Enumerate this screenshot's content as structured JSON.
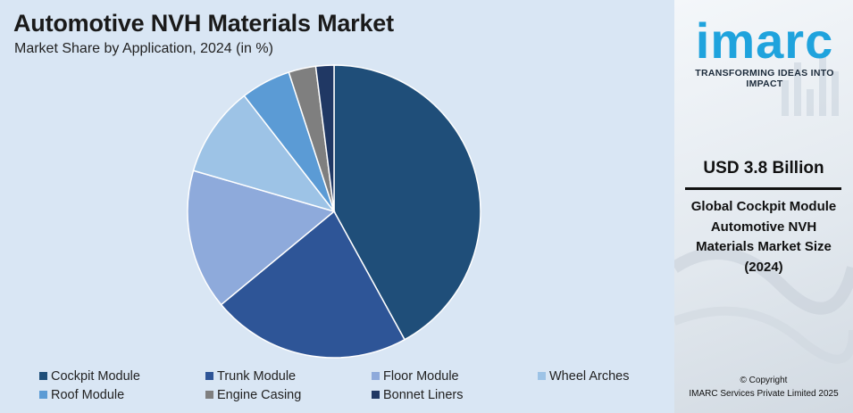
{
  "header": {
    "title": "Automotive NVH Materials Market",
    "subtitle": "Market Share by Application, 2024 (in %)"
  },
  "chart_data": {
    "type": "pie",
    "title": "Automotive NVH Materials Market",
    "subtitle": "Market Share by Application, 2024 (in %)",
    "legend_position": "bottom",
    "start_angle_deg": 0,
    "direction": "clockwise",
    "slices": [
      {
        "label": "Cockpit Module",
        "value": 42.0,
        "color": "#1f4e79"
      },
      {
        "label": "Trunk Module",
        "value": 22.0,
        "color": "#2e5597"
      },
      {
        "label": "Floor Module",
        "value": 15.5,
        "color": "#8eaadb"
      },
      {
        "label": "Wheel Arches",
        "value": 10.0,
        "color": "#9dc3e6"
      },
      {
        "label": "Roof Module",
        "value": 5.5,
        "color": "#5b9bd5"
      },
      {
        "label": "Engine Casing",
        "value": 3.0,
        "color": "#7f7f7f"
      },
      {
        "label": "Bonnet Liners",
        "value": 2.0,
        "color": "#203864"
      }
    ]
  },
  "sidebar": {
    "logo_text": "imarc",
    "tagline": "TRANSFORMING IDEAS INTO IMPACT",
    "market_value": "USD 3.8 Billion",
    "market_desc_lines": [
      "Global Cockpit Module",
      "Automotive NVH",
      "Materials Market Size",
      "(2024)"
    ],
    "copyright_lines": [
      "© Copyright",
      "IMARC Services Private Limited 2025"
    ],
    "brand_color": "#1fa3dd"
  }
}
